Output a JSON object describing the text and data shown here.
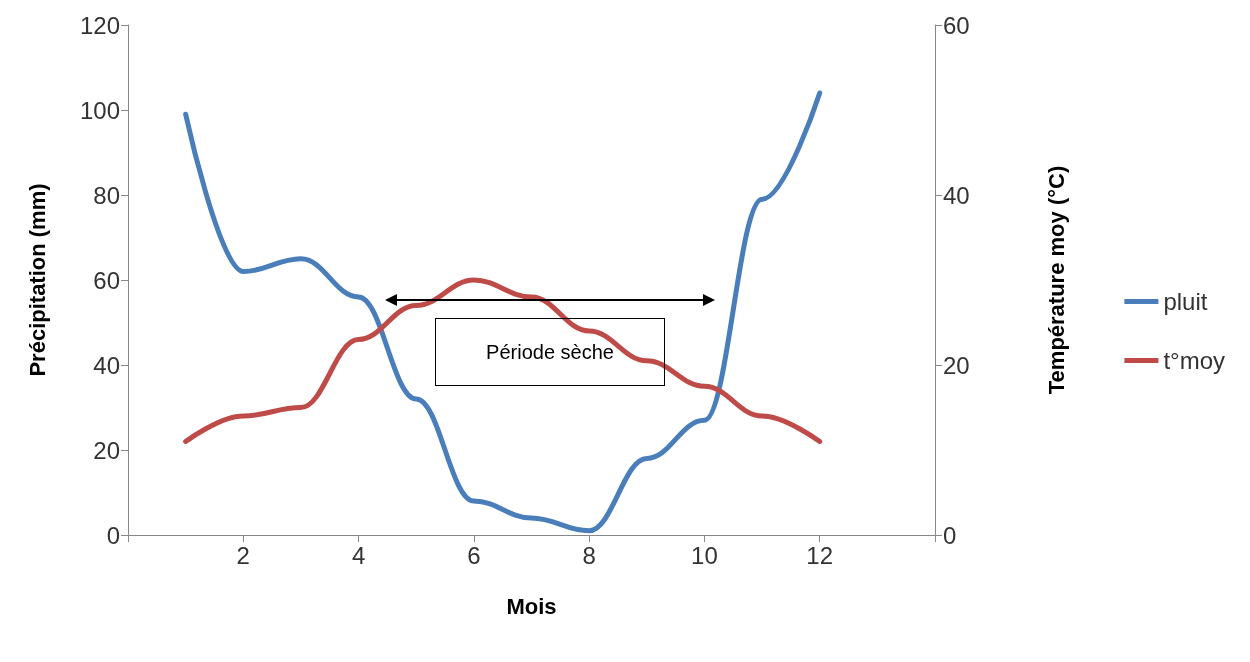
{
  "chart_data": {
    "type": "line",
    "xlabel": "Mois",
    "ylabel": "Précipitation (mm)",
    "y2label": "Température moy (°C)",
    "x": [
      1,
      2,
      3,
      4,
      5,
      6,
      7,
      8,
      9,
      10,
      11,
      12
    ],
    "series": [
      {
        "name": "pluit",
        "color": "#4a7ebb",
        "values": [
          99,
          62,
          65,
          56,
          32,
          8,
          4,
          1,
          18,
          27,
          79,
          104
        ]
      },
      {
        "name": "t°moy",
        "color": "#be4b48",
        "axis": "y2",
        "values": [
          11,
          14,
          15,
          23,
          27,
          30,
          28,
          24,
          20.5,
          17.5,
          14,
          11
        ]
      }
    ],
    "xlim": [
      0,
      14
    ],
    "xticks": [
      {
        "value": 0,
        "label": null
      },
      2,
      4,
      6,
      8,
      10,
      12,
      {
        "value": 14,
        "label": null
      }
    ],
    "ylim": [
      0,
      120
    ],
    "yticks": [
      0,
      20,
      40,
      60,
      80,
      100,
      120
    ],
    "y2lim": [
      0,
      60
    ],
    "y2ticks": [
      0,
      20,
      40,
      60
    ],
    "annotations": [
      "Période sèche"
    ],
    "grid": false,
    "legend": "right",
    "marker": "none",
    "line_style": "solid"
  }
}
